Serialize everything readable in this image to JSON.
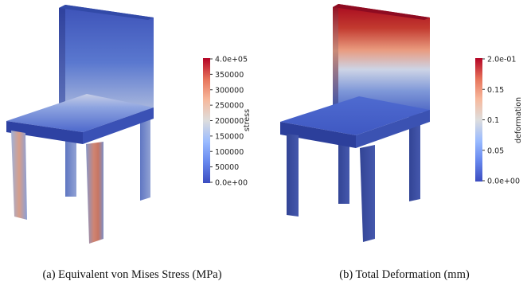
{
  "panels": [
    {
      "caption": "(a) Equivalent von Mises Stress (MPa)",
      "colorbar": {
        "title": "stress",
        "tick_labels": [
          "4.0e+05",
          "350000",
          "300000",
          "250000",
          "200000",
          "150000",
          "100000",
          "50000",
          "0.0e+00"
        ],
        "range": [
          0,
          400000
        ]
      }
    },
    {
      "caption": "(b) Total Deformation (mm)",
      "colorbar": {
        "title": "deformation",
        "tick_labels": [
          "2.0e-01",
          "0.15",
          "0.1",
          "0.05",
          "0.0e+00"
        ],
        "range": [
          0,
          0.2
        ]
      }
    }
  ],
  "colors": {
    "colormap": [
      "#3b4cc0",
      "#7b9ff9",
      "#c0d4f5",
      "#dddddd",
      "#f2cbb7",
      "#ee8468",
      "#b40426"
    ],
    "background": "#ffffff"
  }
}
